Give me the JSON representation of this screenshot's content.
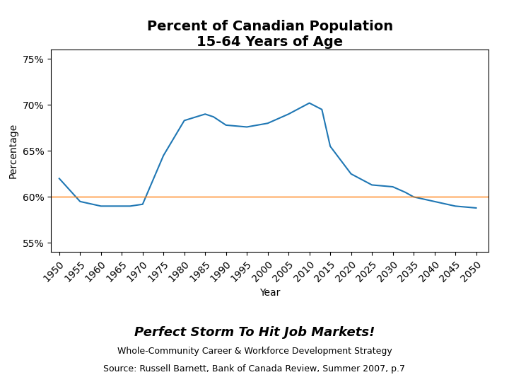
{
  "chart_data": {
    "type": "line",
    "title": "Percent of Canadian Population\n15-64 Years of Age",
    "subtitle": "Perfect Storm To Hit Job Markets!",
    "annotations": [
      "Whole-Community Career & Workforce Development Strategy",
      "Source: Russell Barnett, Bank of Canada Review, Summer 2007, p.7"
    ],
    "x_label": "Year",
    "y_label": "Percentage",
    "x": [
      1950,
      1955,
      1960,
      1965,
      1967,
      1970,
      1975,
      1980,
      1985,
      1987,
      1990,
      1995,
      2000,
      2005,
      2010,
      2013,
      2015,
      2020,
      2025,
      2030,
      2033,
      2035,
      2040,
      2043,
      2045,
      2050
    ],
    "values": [
      62.0,
      59.5,
      59.0,
      59.0,
      59.0,
      59.2,
      64.5,
      68.3,
      69.0,
      68.7,
      67.8,
      67.6,
      68.0,
      69.0,
      70.2,
      69.5,
      65.5,
      62.5,
      61.3,
      61.1,
      60.5,
      60.0,
      59.5,
      59.2,
      59.0,
      58.8
    ],
    "reference_line": 60,
    "xlim": [
      1948,
      2053
    ],
    "xticks": [
      1950,
      1955,
      1960,
      1965,
      1970,
      1975,
      1980,
      1985,
      1990,
      1995,
      2000,
      2005,
      2010,
      2015,
      2020,
      2025,
      2030,
      2035,
      2040,
      2045,
      2050
    ],
    "ylim": [
      54,
      76
    ],
    "yticks": [
      {
        "value": 55,
        "label": "55%"
      },
      {
        "value": 60,
        "label": "60%"
      },
      {
        "value": 65,
        "label": "65%"
      },
      {
        "value": 70,
        "label": "70%"
      },
      {
        "value": 75,
        "label": "75%"
      }
    ]
  }
}
